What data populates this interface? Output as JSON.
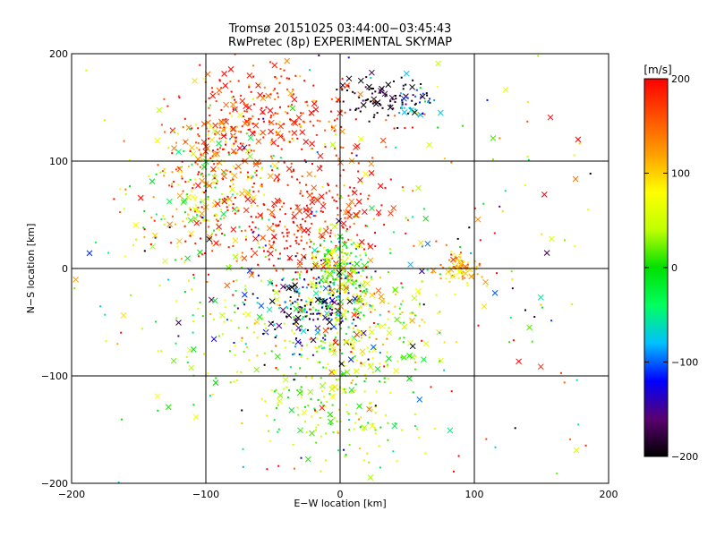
{
  "title_line1": "Tromsø 20151025 03:44:00−03:45:43",
  "title_line2": "RwPretec (8p) EXPERIMENTAL SKYMAP",
  "colorbar": {
    "unit_label": "[m/s]",
    "ticks": [
      "200",
      "100",
      "0",
      "−100",
      "−200"
    ],
    "stops": [
      "#000000",
      "#5a0070",
      "#0000ff",
      "#00c0ff",
      "#00ff60",
      "#00e000",
      "#c0ff00",
      "#ffff00",
      "#ffa000",
      "#ff5000",
      "#ff0000"
    ]
  },
  "chart_data": {
    "type": "scatter",
    "xlabel": "E−W location [km]",
    "ylabel": "N−S location [km]",
    "xlim": [
      -200,
      200
    ],
    "ylim": [
      -200,
      200
    ],
    "xticks": [
      "−200",
      "−100",
      "0",
      "100",
      "200"
    ],
    "yticks": [
      "200",
      "100",
      "0",
      "−100",
      "−200"
    ],
    "grid": true,
    "colorscale_range": [
      -200,
      200
    ],
    "clusters": [
      {
        "x": 30,
        "y": 160,
        "sx": 20,
        "sy": 10,
        "n": 90,
        "v": -200,
        "vs": 25
      },
      {
        "x": 55,
        "y": 150,
        "sx": 8,
        "sy": 8,
        "n": 25,
        "v": -90,
        "vs": 25
      },
      {
        "x": -55,
        "y": 140,
        "sx": 35,
        "sy": 25,
        "n": 280,
        "v": 180,
        "vs": 40
      },
      {
        "x": -90,
        "y": 100,
        "sx": 25,
        "sy": 25,
        "n": 160,
        "v": 120,
        "vs": 90
      },
      {
        "x": -100,
        "y": 60,
        "sx": 25,
        "sy": 25,
        "n": 160,
        "v": 80,
        "vs": 60
      },
      {
        "x": -30,
        "y": 40,
        "sx": 35,
        "sy": 30,
        "n": 300,
        "v": 200,
        "vs": 40
      },
      {
        "x": 0,
        "y": 0,
        "sx": 12,
        "sy": 20,
        "n": 220,
        "v": 20,
        "vs": 60
      },
      {
        "x": -20,
        "y": -40,
        "sx": 22,
        "sy": 22,
        "n": 200,
        "v": -150,
        "vs": 80
      },
      {
        "x": 20,
        "y": -50,
        "sx": 25,
        "sy": 25,
        "n": 150,
        "v": 60,
        "vs": 50
      },
      {
        "x": 0,
        "y": -120,
        "sx": 30,
        "sy": 30,
        "n": 200,
        "v": 40,
        "vs": 40
      },
      {
        "x": 90,
        "y": 0,
        "sx": 10,
        "sy": 8,
        "n": 80,
        "v": 120,
        "vs": 40
      },
      {
        "x": -60,
        "y": -60,
        "sx": 40,
        "sy": 40,
        "n": 100,
        "v": 40,
        "vs": 40
      },
      {
        "x": 0,
        "y": 20,
        "sx": 120,
        "sy": 110,
        "n": 380,
        "v": 50,
        "vs": 130
      }
    ]
  }
}
